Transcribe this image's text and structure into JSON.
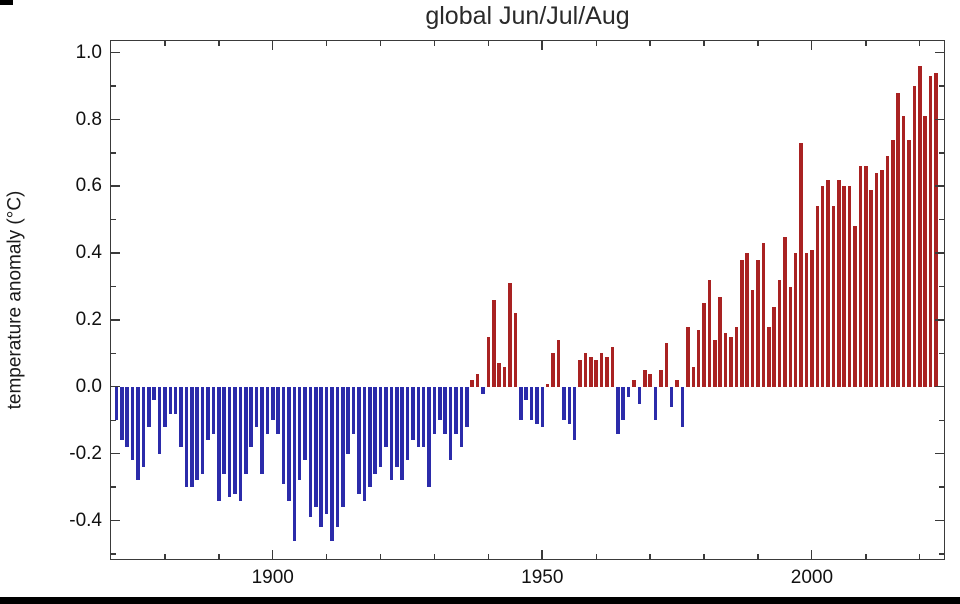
{
  "chart_data": {
    "type": "bar",
    "title": "global Jun/Jul/Aug",
    "xlabel": "",
    "ylabel": "temperature anomaly (°C)",
    "year_start": 1871,
    "year_end": 2023,
    "values": [
      -0.1,
      -0.16,
      -0.18,
      -0.22,
      -0.28,
      -0.24,
      -0.12,
      -0.04,
      -0.2,
      -0.12,
      -0.08,
      -0.08,
      -0.18,
      -0.3,
      -0.3,
      -0.28,
      -0.26,
      -0.16,
      -0.14,
      -0.34,
      -0.26,
      -0.33,
      -0.32,
      -0.34,
      -0.26,
      -0.18,
      -0.12,
      -0.26,
      -0.14,
      -0.1,
      -0.14,
      -0.29,
      -0.34,
      -0.46,
      -0.28,
      -0.22,
      -0.39,
      -0.36,
      -0.42,
      -0.38,
      -0.46,
      -0.42,
      -0.36,
      -0.2,
      -0.14,
      -0.32,
      -0.34,
      -0.3,
      -0.26,
      -0.24,
      -0.18,
      -0.28,
      -0.24,
      -0.28,
      -0.22,
      -0.16,
      -0.18,
      -0.18,
      -0.3,
      -0.14,
      -0.1,
      -0.14,
      -0.22,
      -0.14,
      -0.18,
      -0.12,
      0.02,
      0.04,
      -0.02,
      0.15,
      0.26,
      0.07,
      0.06,
      0.31,
      0.22,
      -0.1,
      -0.04,
      -0.1,
      -0.11,
      -0.12,
      0.01,
      0.1,
      0.14,
      -0.1,
      -0.11,
      -0.16,
      0.08,
      0.1,
      0.09,
      0.08,
      0.1,
      0.09,
      0.12,
      -0.14,
      -0.1,
      -0.03,
      0.02,
      -0.05,
      0.05,
      0.04,
      -0.1,
      0.05,
      0.13,
      -0.06,
      0.02,
      -0.12,
      0.18,
      0.06,
      0.17,
      0.25,
      0.32,
      0.14,
      0.27,
      0.16,
      0.15,
      0.18,
      0.38,
      0.4,
      0.29,
      0.38,
      0.43,
      0.18,
      0.24,
      0.32,
      0.45,
      0.3,
      0.4,
      0.73,
      0.4,
      0.41,
      0.54,
      0.6,
      0.62,
      0.54,
      0.62,
      0.6,
      0.6,
      0.48,
      0.66,
      0.66,
      0.59,
      0.64,
      0.65,
      0.69,
      0.74,
      0.88,
      0.81,
      0.74,
      0.9,
      0.96,
      0.81,
      0.93,
      0.94
    ],
    "xlim": [
      1870,
      2024.5
    ],
    "ylim": [
      -0.515,
      1.035
    ],
    "yticks": [
      1.0,
      0.8,
      0.6,
      0.4,
      0.2,
      0.0,
      -0.2,
      -0.4
    ],
    "ytick_labels": [
      "1.0",
      "0.8",
      "0.6",
      "0.4",
      "0.2",
      "0.0",
      "-0.2",
      "-0.4"
    ],
    "xticks": [
      1900,
      1950,
      2000
    ],
    "xtick_labels": [
      "1900",
      "1950",
      "2000"
    ],
    "x_minor_every": 10,
    "grid": false,
    "legend": false,
    "colors": {
      "positive": "#a92222",
      "negative": "#2b2baa"
    }
  }
}
